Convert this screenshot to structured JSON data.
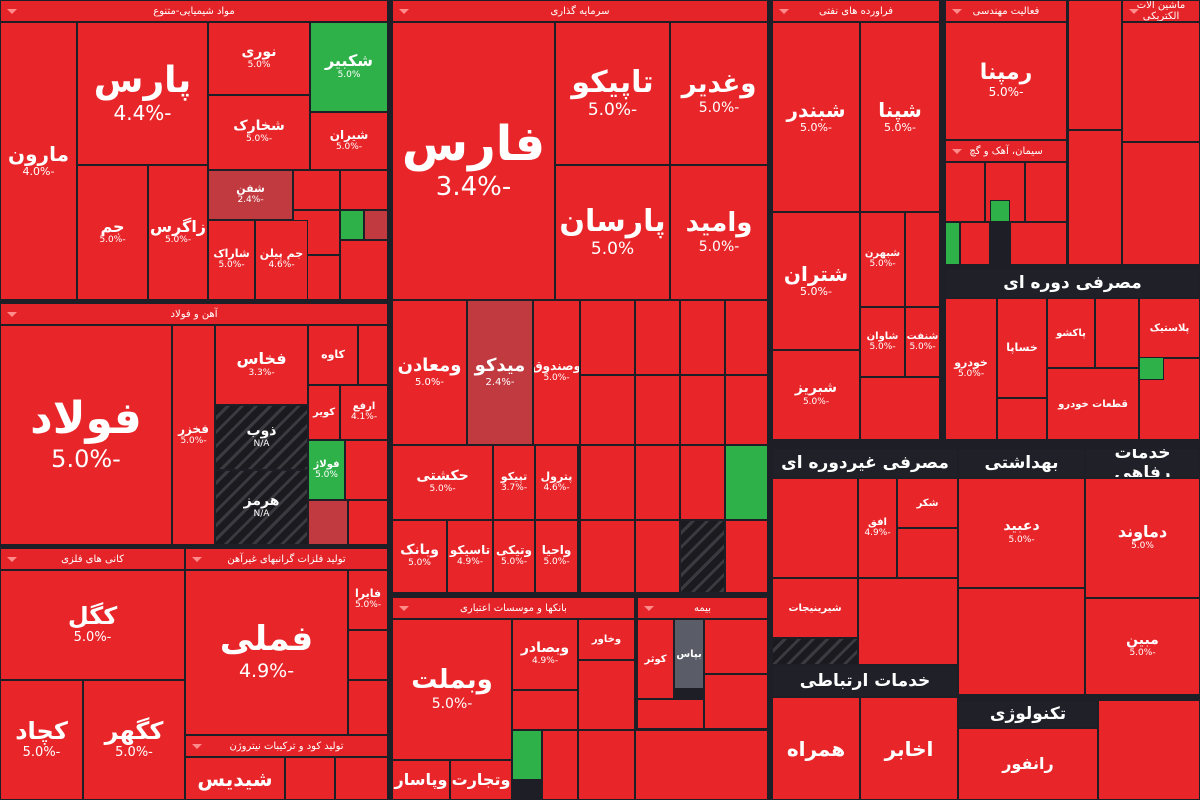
{
  "sectors": [
    {
      "title": "مواد شیمیایی-متنوع",
      "tiles": [
        {
          "symbol": "مارون",
          "change": "-4.0%"
        },
        {
          "symbol": "پارس",
          "change": "-4.4%"
        },
        {
          "symbol": "نوری",
          "change": "5.0%"
        },
        {
          "symbol": "شکبیر",
          "change": "5.0%"
        },
        {
          "symbol": "شخارک",
          "change": "-5.0%"
        },
        {
          "symbol": "شیران",
          "change": "-5.0%"
        },
        {
          "symbol": "جم",
          "change": "-5.0%"
        },
        {
          "symbol": "زاگرس",
          "change": "-5.0%"
        },
        {
          "symbol": "شفن",
          "change": "-2.4%"
        },
        {
          "symbol": "شاراک",
          "change": "-5.0%"
        },
        {
          "symbol": "جم پیلن",
          "change": "-4.6%"
        }
      ]
    },
    {
      "title": "آهن و فولاد",
      "tiles": [
        {
          "symbol": "فولاد",
          "change": "-5.0%"
        },
        {
          "symbol": "فخاس",
          "change": "-3.3%"
        },
        {
          "symbol": "کاوه"
        },
        {
          "symbol": "فخزر",
          "change": "-5.0%"
        },
        {
          "symbol": "ذوب",
          "change": "N/A"
        },
        {
          "symbol": "هرمز",
          "change": "N/A"
        },
        {
          "symbol": "کویر"
        },
        {
          "symbol": "ارفع",
          "change": "-4.1%"
        },
        {
          "symbol": "فولاژ",
          "change": "5.0%"
        }
      ]
    },
    {
      "title": "کانی های فلزی",
      "tiles": [
        {
          "symbol": "کگل",
          "change": "-5.0%"
        },
        {
          "symbol": "کچاد",
          "change": "-5.0%"
        },
        {
          "symbol": "کگهر",
          "change": "-5.0%"
        }
      ]
    },
    {
      "title": "تولید فلزات گرانبهای غیرآهن",
      "tiles": [
        {
          "symbol": "فملی",
          "change": "-4.9%"
        },
        {
          "symbol": "فایرا",
          "change": "-5.0%"
        }
      ]
    },
    {
      "title": "تولید کود و ترکیبات نیتروژن",
      "tiles": [
        {
          "symbol": "شیدیس"
        }
      ]
    },
    {
      "title": "سرمایه گذاری",
      "tiles": [
        {
          "symbol": "فارس",
          "change": "-3.4%"
        },
        {
          "symbol": "تاپیکو",
          "change": "-5.0%"
        },
        {
          "symbol": "وغدیر",
          "change": "-5.0%"
        },
        {
          "symbol": "پارسان",
          "change": "5.0%"
        },
        {
          "symbol": "وامید",
          "change": "-5.0%"
        },
        {
          "symbol": "ومعادن",
          "change": "-5.0%"
        },
        {
          "symbol": "میدکو",
          "change": "-2.4%"
        },
        {
          "symbol": "وصندوق",
          "change": "-5.0%"
        },
        {
          "symbol": "حکشتی",
          "change": "-5.0%"
        },
        {
          "symbol": "تپیکو",
          "change": "-3.7%"
        },
        {
          "symbol": "پترول",
          "change": "-4.6%"
        },
        {
          "symbol": "وبانک",
          "change": "5.0%"
        },
        {
          "symbol": "تاسیکو",
          "change": "-4.9%"
        },
        {
          "symbol": "وتیکی",
          "change": "-5.0%"
        },
        {
          "symbol": "واحیا",
          "change": "-5.0%"
        }
      ]
    },
    {
      "title": "بانکها و موسسات اعتباری",
      "tiles": [
        {
          "symbol": "وبملت",
          "change": "-5.0%"
        },
        {
          "symbol": "وبصادر",
          "change": "-4.9%"
        },
        {
          "symbol": "وخاور"
        },
        {
          "symbol": "وپاسار"
        },
        {
          "symbol": "وتجارت"
        }
      ]
    },
    {
      "title": "بیمه",
      "tiles": [
        {
          "symbol": "کوثر"
        },
        {
          "symbol": "بپاس"
        }
      ]
    },
    {
      "title": "فراورده های نفتی",
      "tiles": [
        {
          "symbol": "شبندر",
          "change": "-5.0%"
        },
        {
          "symbol": "شپنا",
          "change": "-5.0%"
        },
        {
          "symbol": "شتران",
          "change": "-5.0%"
        },
        {
          "symbol": "شبریز",
          "change": "-5.0%"
        },
        {
          "symbol": "شبهرن",
          "change": "-5.0%"
        },
        {
          "symbol": "شنفت",
          "change": "-5.0%"
        },
        {
          "symbol": "شاوان",
          "change": "-5.0%"
        }
      ]
    },
    {
      "title": "فعالیت مهندسی",
      "tiles": [
        {
          "symbol": "رمپنا",
          "change": "-5.0%"
        }
      ]
    },
    {
      "title": "سیمان، آهک و گچ",
      "tiles": []
    },
    {
      "title": "ماشین آلات الکتریکی",
      "tiles": []
    },
    {
      "title": "مصرفی دوره ای",
      "tiles": [
        {
          "symbol": "خودرو",
          "change": "-5.0%"
        },
        {
          "symbol": "خساپا"
        },
        {
          "symbol": "پاکشو"
        },
        {
          "symbol": "قطعات خودرو"
        },
        {
          "symbol": "پلاستیک"
        }
      ]
    },
    {
      "title": "مصرفی غیردوره ای",
      "tiles": [
        {
          "symbol": "شکر"
        },
        {
          "symbol": "افق",
          "change": "-4.9%"
        },
        {
          "symbol": "شیرینیجات"
        }
      ]
    },
    {
      "title": "بهداشتی",
      "tiles": [
        {
          "symbol": "دعبید",
          "change": "-5.0%"
        }
      ]
    },
    {
      "title": "خدمات رفاهی",
      "tiles": [
        {
          "symbol": "دماوند",
          "change": "5.0%"
        },
        {
          "symbol": "مبین",
          "change": "-5.0%"
        }
      ]
    },
    {
      "title": "خدمات ارتباطی",
      "tiles": [
        {
          "symbol": "همراه"
        },
        {
          "symbol": "اخابر"
        }
      ]
    },
    {
      "title": "تکنولوژی",
      "tiles": [
        {
          "symbol": "رانفور"
        }
      ]
    }
  ]
}
